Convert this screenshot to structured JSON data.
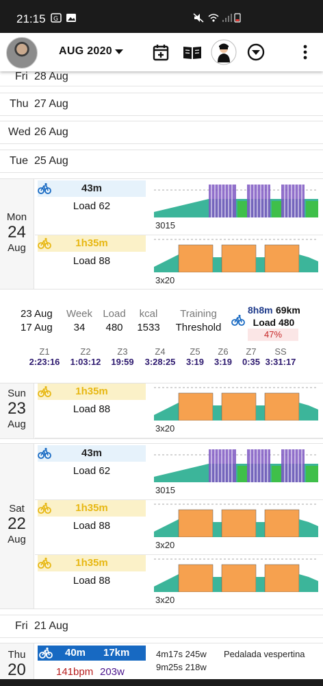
{
  "status": {
    "time": "21:15"
  },
  "header": {
    "month": "AUG 2020"
  },
  "rows": [
    {
      "dayname": "Fri",
      "date": "28 Aug"
    },
    {
      "dayname": "Thu",
      "date": "27 Aug"
    },
    {
      "dayname": "Wed",
      "date": "26 Aug"
    },
    {
      "dayname": "Tue",
      "date": "25 Aug"
    },
    {
      "dayname": "Fri",
      "date": "21 Aug"
    }
  ],
  "mon": {
    "dayname": "Mon",
    "daynum": "24",
    "month": "Aug",
    "acts": [
      {
        "duration": "43m",
        "load": "Load 62",
        "name": "3015",
        "color": "blue"
      },
      {
        "duration": "1h35m",
        "load": "Load 88",
        "name": "3x20",
        "color": "yellow"
      }
    ]
  },
  "summary": {
    "range_start": "23 Aug",
    "range_end": "17 Aug",
    "week_label": "Week",
    "week": "34",
    "load_label": "Load",
    "load": "480",
    "kcal_label": "kcal",
    "kcal": "1533",
    "training_label": "Training",
    "training": "Threshold",
    "total_time": "8h8m",
    "total_km": "69km",
    "total_load": "Load 480",
    "percent": "47%",
    "zones": [
      {
        "label": "Z1",
        "value": "2:23:16"
      },
      {
        "label": "Z2",
        "value": "1:03:12"
      },
      {
        "label": "Z3",
        "value": "19:59"
      },
      {
        "label": "Z4",
        "value": "3:28:25"
      },
      {
        "label": "Z5",
        "value": "3:19"
      },
      {
        "label": "Z6",
        "value": "3:19"
      },
      {
        "label": "Z7",
        "value": "0:35"
      },
      {
        "label": "SS",
        "value": "3:31:17"
      }
    ]
  },
  "sun": {
    "dayname": "Sun",
    "daynum": "23",
    "month": "Aug",
    "acts": [
      {
        "duration": "1h35m",
        "load": "Load 88",
        "name": "3x20",
        "color": "yellow"
      }
    ]
  },
  "sat": {
    "dayname": "Sat",
    "daynum": "22",
    "month": "Aug",
    "acts": [
      {
        "duration": "43m",
        "load": "Load 62",
        "name": "3015",
        "color": "blue"
      },
      {
        "duration": "1h35m",
        "load": "Load 88",
        "name": "3x20",
        "color": "yellow"
      },
      {
        "duration": "1h35m",
        "load": "Load 88",
        "name": "3x20",
        "color": "yellow"
      }
    ]
  },
  "thu20": {
    "dayname": "Thu",
    "daynum": "20",
    "duration": "40m",
    "distance": "17km",
    "hr": "141bpm",
    "power": "203w",
    "interval1": "4m17s 245w",
    "interval2": "9m25s 218w",
    "name": "Pedalada vespertina"
  },
  "colors": {
    "teal": "#3cb59a",
    "orange": "#f6a14f",
    "purple": "#7e57c2",
    "green": "#3fbf4a",
    "blue_accent": "#1769c2"
  }
}
